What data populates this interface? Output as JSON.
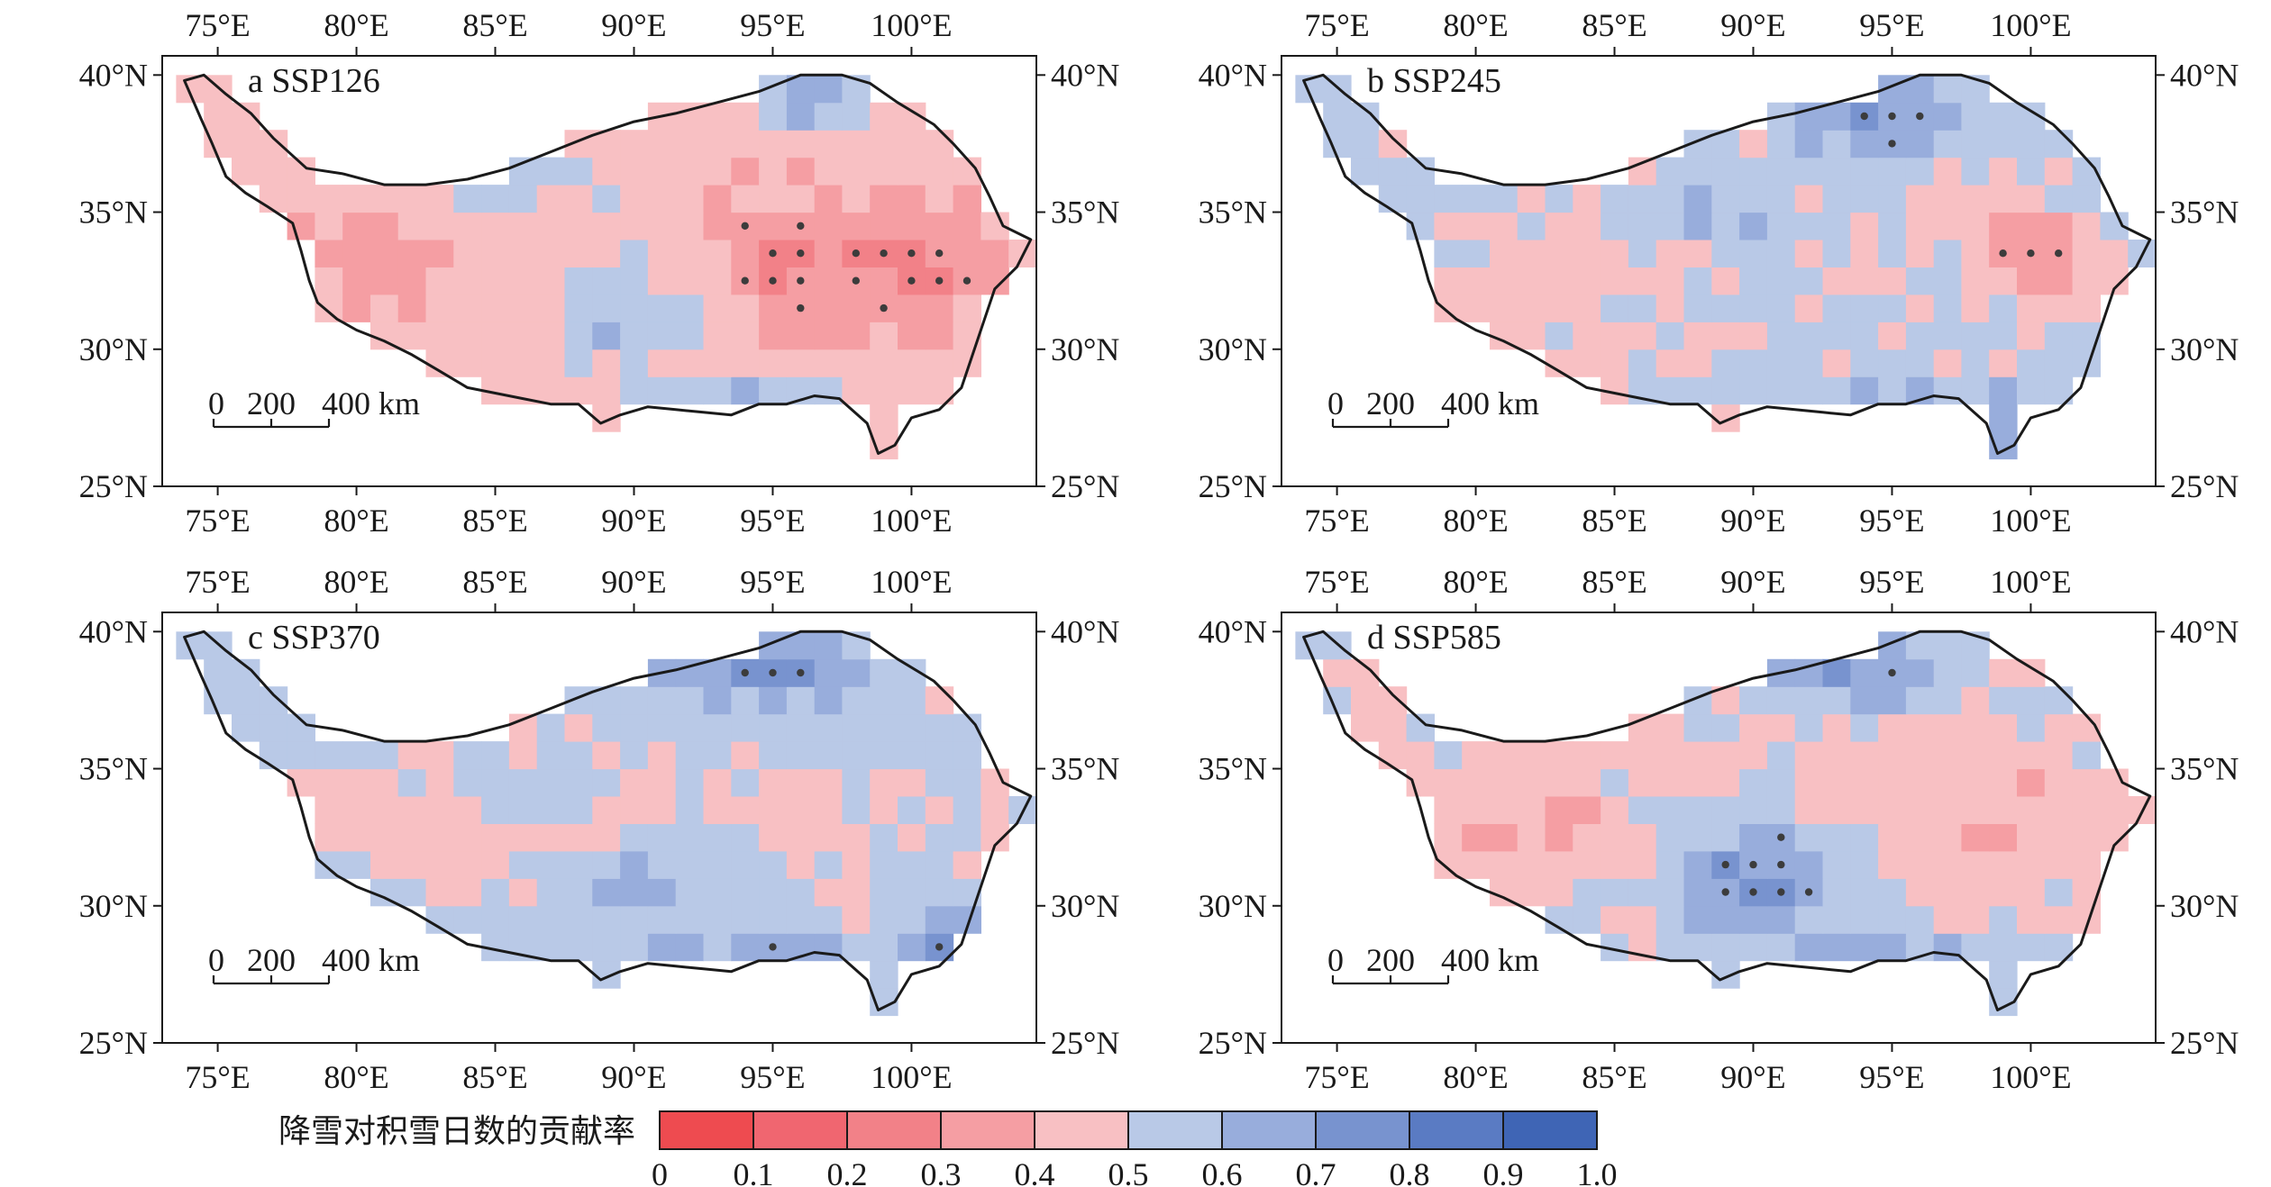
{
  "figure": {
    "colorbar": {
      "title": "降雪对积雪日数的贡献率",
      "ticks": [
        "0",
        "0.1",
        "0.2",
        "0.3",
        "0.4",
        "0.5",
        "0.6",
        "0.7",
        "0.8",
        "0.9",
        "1.0"
      ],
      "colors": [
        "#ee4b50",
        "#f06670",
        "#f28188",
        "#f59ea3",
        "#f8c0c3",
        "#b9c9e7",
        "#98addc",
        "#7893cf",
        "#5a7bc3",
        "#3f65b5"
      ]
    },
    "axes": {
      "lon_labels": [
        "75°E",
        "80°E",
        "85°E",
        "90°E",
        "95°E",
        "100°E"
      ],
      "lat_labels": [
        "40°N",
        "35°N",
        "30°N",
        "25°N"
      ],
      "lon_values": [
        75,
        80,
        85,
        90,
        95,
        100
      ],
      "lat_values": [
        40,
        35,
        30,
        25
      ],
      "lon_range": [
        73,
        104.5
      ],
      "lat_range": [
        25,
        40.7
      ]
    },
    "scale_bar": {
      "labels": [
        "0",
        "200",
        "400 km"
      ]
    },
    "panels": [
      {
        "id": "a",
        "label": "a SSP126",
        "scenario": "SSP126",
        "pattern": "red-east"
      },
      {
        "id": "b",
        "label": "b SSP245",
        "scenario": "SSP245",
        "pattern": "mixed"
      },
      {
        "id": "c",
        "label": "c SSP370",
        "scenario": "SSP370",
        "pattern": "mixed-blue"
      },
      {
        "id": "d",
        "label": "d SSP585",
        "scenario": "SSP585",
        "pattern": "blue-central"
      }
    ]
  }
}
